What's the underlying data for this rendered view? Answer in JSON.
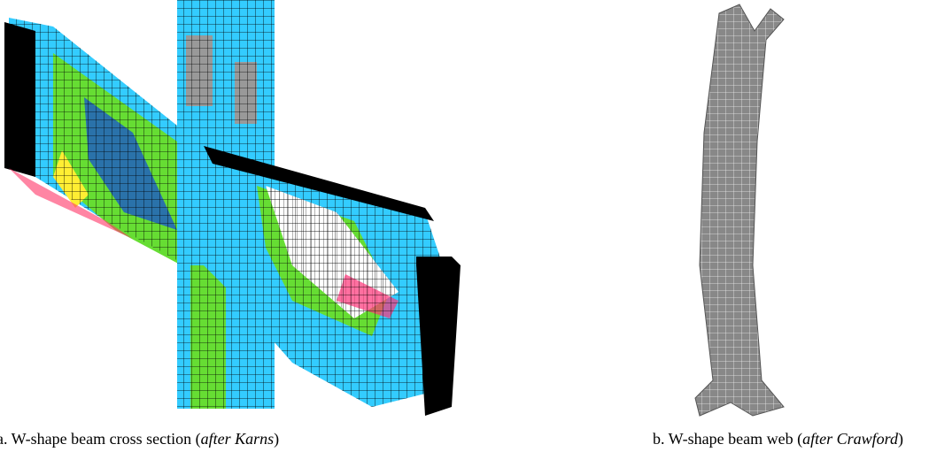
{
  "figure": {
    "panels": [
      {
        "caption": {
          "prefix": "a. W-shape beam cross section (",
          "source": "after Karns",
          "suffix": ")"
        }
      },
      {
        "caption": {
          "prefix": "b. W-shape beam web (",
          "source": "after Crawford",
          "suffix": ")"
        }
      }
    ]
  }
}
